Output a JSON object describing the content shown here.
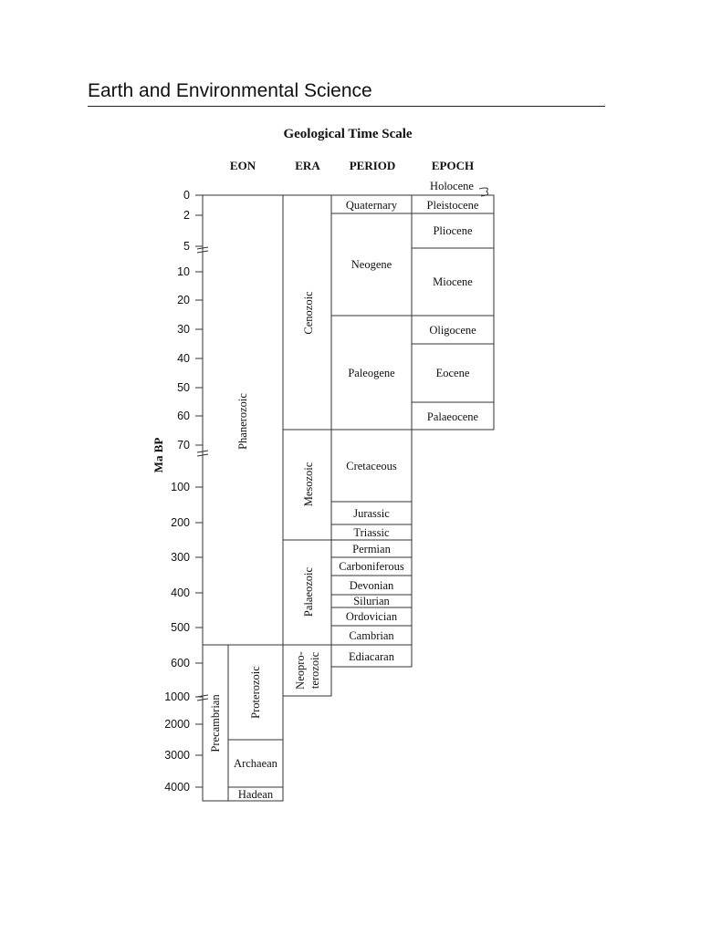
{
  "page": {
    "header": "Earth and Environmental Science"
  },
  "diagram": {
    "title": "Geological Time Scale",
    "column_headers": {
      "eon": "EON",
      "era": "ERA",
      "period": "PERIOD",
      "epoch": "EPOCH"
    },
    "y_axis_label": "Ma BP",
    "ticks": [
      "0",
      "2",
      "5",
      "10",
      "20",
      "30",
      "40",
      "50",
      "60",
      "70",
      "100",
      "200",
      "300",
      "400",
      "500",
      "600",
      "1000",
      "2000",
      "3000",
      "4000"
    ],
    "eons": [
      "Phanerozoic",
      "Precambrian"
    ],
    "precambrian_subdivisions": [
      "Proterozoic",
      "Archaean",
      "Hadean"
    ],
    "eras": [
      "Cenozoic",
      "Mesozoic",
      "Palaeozoic",
      "Neopro-",
      "terozoic"
    ],
    "periods": [
      "Quaternary",
      "Neogene",
      "Paleogene",
      "Cretaceous",
      "Jurassic",
      "Triassic",
      "Permian",
      "Carboniferous",
      "Devonian",
      "Silurian",
      "Ordovician",
      "Cambrian",
      "Ediacaran"
    ],
    "epochs": [
      "Holocene",
      "Pleistocene",
      "Pliocene",
      "Miocene",
      "Oligocene",
      "Eocene",
      "Palaeocene"
    ]
  }
}
